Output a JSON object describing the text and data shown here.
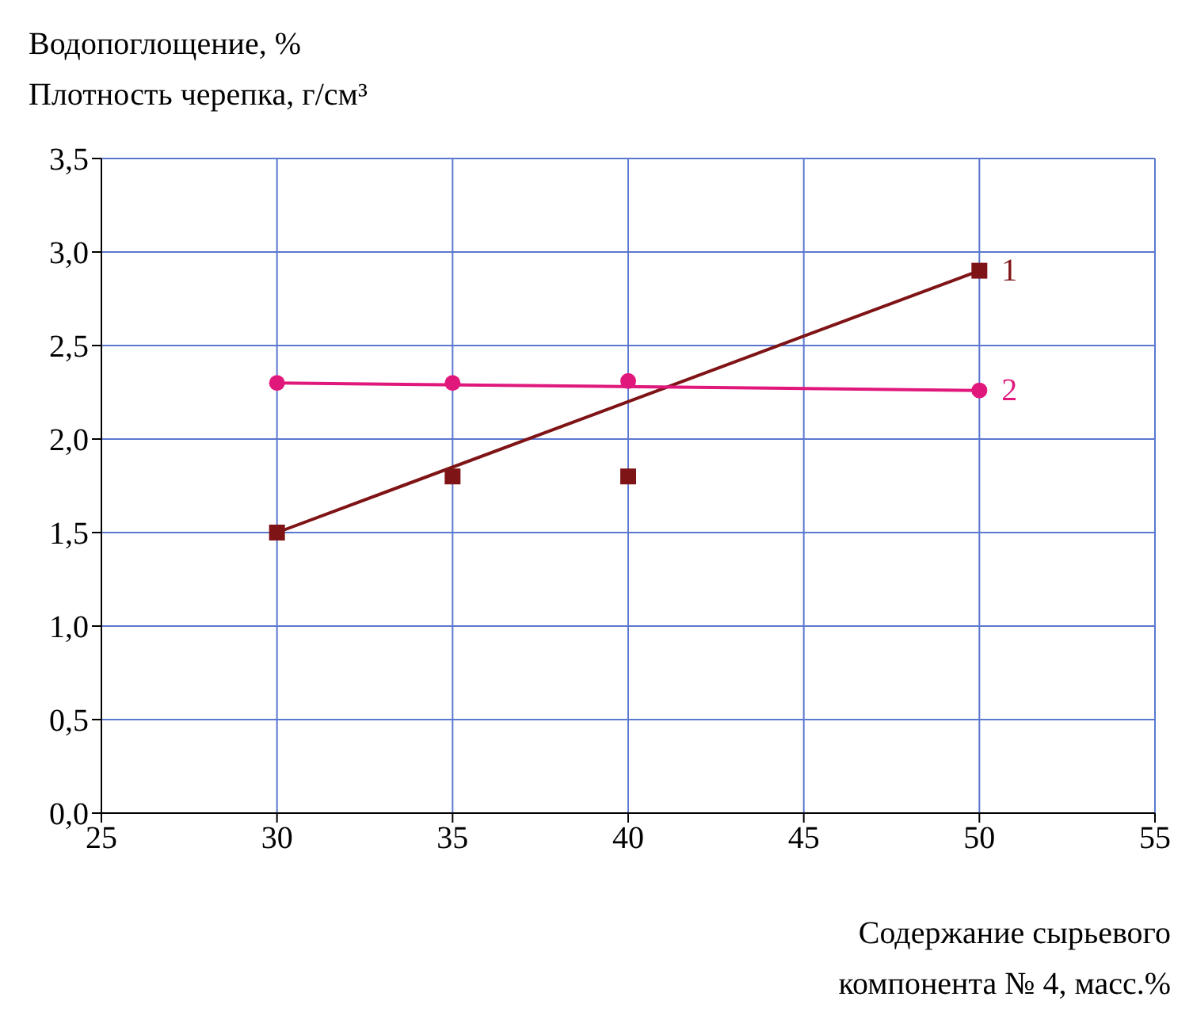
{
  "chart_data": {
    "type": "scatter",
    "ylabel": "Водопоглощение, %\nПлотность черепка, г/см³",
    "xlabel": "Содержание сырьевого компонента № 4, масс.%",
    "xlim": [
      25,
      55
    ],
    "xticks": [
      25,
      30,
      35,
      40,
      45,
      50,
      55
    ],
    "ylim": [
      0,
      3.5
    ],
    "yticks": [
      {
        "value": 0,
        "label": "0,0"
      },
      {
        "value": 0.5,
        "label": "0,5"
      },
      {
        "value": 1,
        "label": "1,0"
      },
      {
        "value": 1.5,
        "label": "1,5"
      },
      {
        "value": 2,
        "label": "2,0"
      },
      {
        "value": 2.5,
        "label": "2,5"
      },
      {
        "value": 3,
        "label": "3,0"
      },
      {
        "value": 3.5,
        "label": "3,5"
      }
    ],
    "grid": true,
    "legend": false,
    "series": [
      {
        "name": "1",
        "color": "#7f1416",
        "marker": "square",
        "x": [
          30,
          35,
          40,
          50
        ],
        "values": [
          1.5,
          1.8,
          1.8,
          2.9
        ]
      },
      {
        "name": "2",
        "color": "#e0187c",
        "marker": "circle",
        "x": [
          30,
          35,
          40,
          50
        ],
        "values": [
          2.3,
          2.3,
          2.31,
          2.26
        ]
      },
      {
        "type": "line",
        "color": "#7f1416",
        "marker": "none",
        "x": [
          30,
          50
        ],
        "values": [
          1.5,
          2.9
        ]
      },
      {
        "type": "line",
        "color": "#e0187c",
        "marker": "none",
        "x": [
          30,
          50
        ],
        "values": [
          2.3,
          2.26
        ]
      }
    ]
  }
}
